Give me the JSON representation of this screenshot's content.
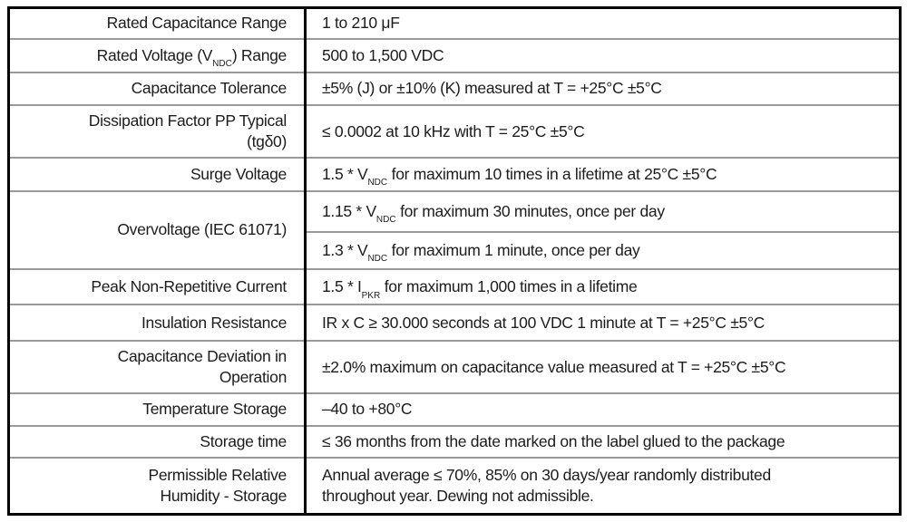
{
  "colors": {
    "background": "#ffffff",
    "text": "#1c1c1c",
    "border_strong": "#000000",
    "border_light": "#9a9a9a"
  },
  "table": {
    "rows": [
      {
        "label": [
          {
            "t": "Rated Capacitance Range"
          }
        ],
        "value": [
          {
            "t": "1 to 210 μF"
          }
        ]
      },
      {
        "label": [
          {
            "t": "Rated Voltage (V"
          },
          {
            "s": "NDC"
          },
          {
            "t": ") Range"
          }
        ],
        "value": [
          {
            "t": "500 to 1,500 VDC"
          }
        ]
      },
      {
        "label": [
          {
            "t": "Capacitance Tolerance"
          }
        ],
        "value": [
          {
            "t": "±5% (J) or ±10% (K) measured at T = +25°C ±5°C"
          }
        ]
      },
      {
        "label": [
          {
            "t": "Dissipation Factor PP Typical"
          },
          {
            "br": true
          },
          {
            "t": "(tgδ0)"
          }
        ],
        "value": [
          {
            "t": "≤ 0.0002 at 10 kHz with T = 25°C ±5°C"
          }
        ]
      },
      {
        "label": [
          {
            "t": "Surge Voltage"
          }
        ],
        "value": [
          {
            "t": "1.5 * V"
          },
          {
            "s": "NDC"
          },
          {
            "t": " for maximum 10 times in a lifetime at 25°C ±5°C"
          }
        ]
      },
      {
        "label": [
          {
            "t": "Overvoltage (IEC 61071)"
          }
        ],
        "rowspan": 2,
        "value": [
          {
            "t": "1.15 * V"
          },
          {
            "s": "NDC"
          },
          {
            "t": " for maximum 30 minutes, once per day"
          }
        ]
      },
      {
        "label": null,
        "value": [
          {
            "t": "1.3 * V"
          },
          {
            "s": "NDC"
          },
          {
            "t": " for maximum 1 minute, once per day"
          }
        ]
      },
      {
        "label": [
          {
            "t": "Peak Non-Repetitive Current"
          }
        ],
        "value": [
          {
            "t": "1.5 * I"
          },
          {
            "s": "PKR"
          },
          {
            "t": " for maximum 1,000 times in a lifetime"
          }
        ]
      },
      {
        "label": [
          {
            "t": "Insulation Resistance"
          }
        ],
        "value": [
          {
            "t": "IR x C ≥ 30.000 seconds at 100 VDC 1 minute at T = +25°C ±5°C"
          }
        ]
      },
      {
        "label": [
          {
            "t": "Capacitance Deviation in"
          },
          {
            "br": true
          },
          {
            "t": "Operation"
          }
        ],
        "value": [
          {
            "t": "±2.0% maximum on capacitance value measured at T = +25°C ±5°C"
          }
        ]
      },
      {
        "label": [
          {
            "t": "Temperature Storage"
          }
        ],
        "value": [
          {
            "t": "–40 to +80°C"
          }
        ]
      },
      {
        "label": [
          {
            "t": "Storage time"
          }
        ],
        "value": [
          {
            "t": "≤ 36 months from the date marked on the label glued to the package"
          }
        ]
      },
      {
        "label": [
          {
            "t": "Permissible Relative"
          },
          {
            "br": true
          },
          {
            "t": "Humidity - Storage"
          }
        ],
        "value": [
          {
            "t": "Annual average ≤ 70%, 85% on 30 days/year randomly distributed"
          },
          {
            "br": true
          },
          {
            "t": "throughout year. Dewing not admissible."
          }
        ]
      }
    ]
  }
}
